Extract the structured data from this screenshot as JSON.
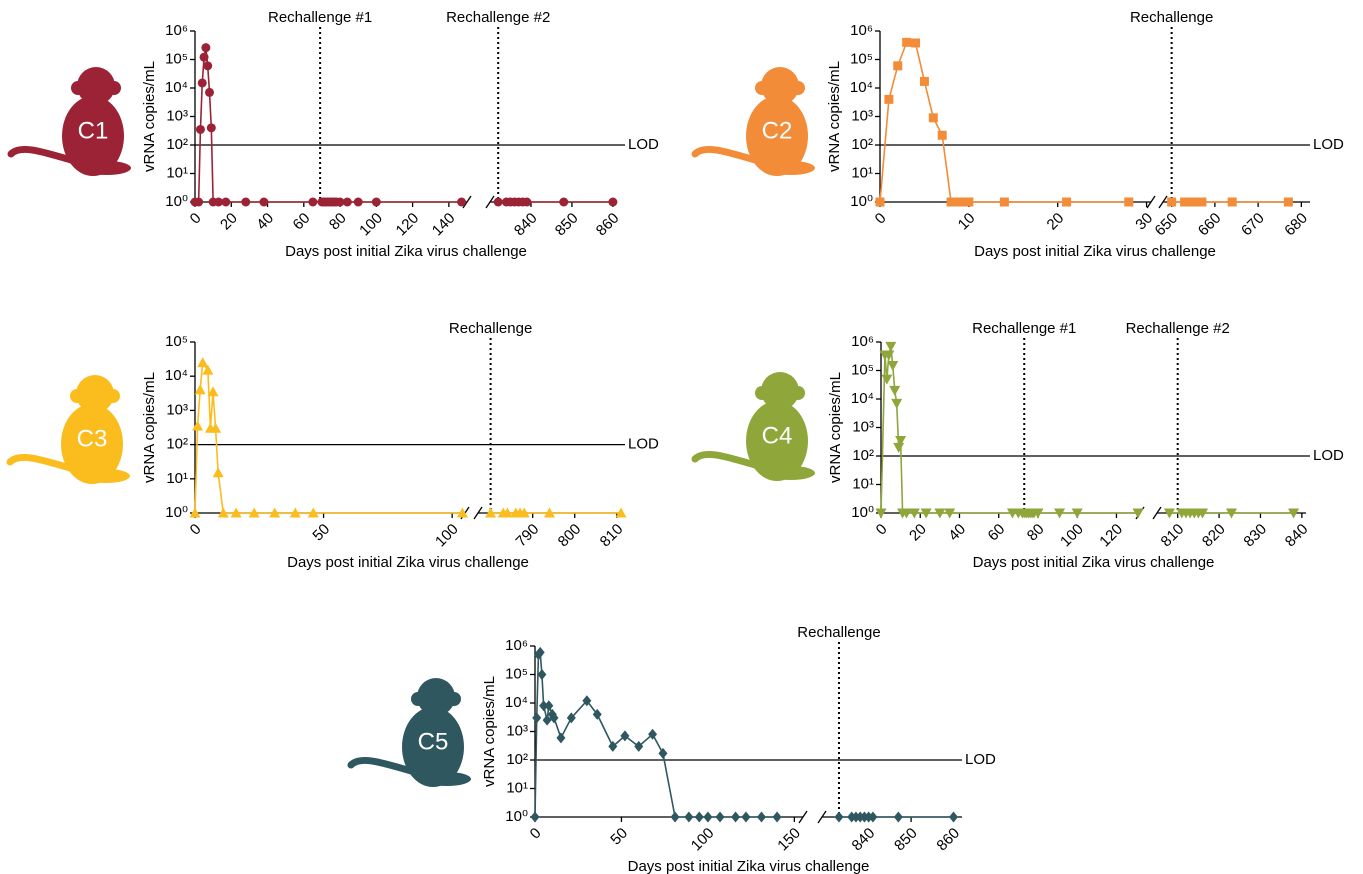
{
  "chart_data": [
    {
      "type": "line",
      "label": "C1",
      "color": "#9b2335",
      "marker": "circle",
      "log_y": true,
      "ylabel": "vRNA copies/mL",
      "xlabel": "Days post initial Zika virus challenge",
      "ylim": [
        1,
        1000000
      ],
      "yticks": [
        {
          "value": 1,
          "label": "10⁰"
        },
        {
          "value": 10,
          "label": "10¹"
        },
        {
          "value": 100,
          "label": "10²"
        },
        {
          "value": 1000,
          "label": "10³"
        },
        {
          "value": 10000,
          "label": "10⁴"
        },
        {
          "value": 100000,
          "label": "10⁵"
        },
        {
          "value": 1000000,
          "label": "10⁶"
        }
      ],
      "x_segments": [
        {
          "xlim": [
            0,
            150
          ],
          "xticks": [
            0,
            20,
            40,
            60,
            80,
            100,
            120,
            140
          ]
        },
        {
          "xlim": [
            830,
            861
          ],
          "xticks": [
            840,
            850,
            860
          ]
        }
      ],
      "lod": {
        "text": "LOD",
        "y": 100
      },
      "annotations": [
        {
          "text": "Rechallenge #1",
          "x": 69
        },
        {
          "text": "Rechallenge #2",
          "x": 832
        }
      ],
      "x": [
        0,
        2,
        3,
        4,
        5,
        6,
        7,
        8,
        9,
        10,
        13,
        17,
        28,
        38,
        65,
        70,
        71,
        72,
        73,
        74,
        75,
        76,
        77,
        78,
        80,
        84,
        90,
        100,
        147,
        832,
        834,
        835,
        836,
        837,
        838,
        839,
        848,
        860
      ],
      "values": [
        1,
        1,
        350,
        15000,
        120000,
        260000,
        60000,
        7000,
        400,
        1,
        1,
        1,
        1,
        1,
        1,
        1,
        1,
        1,
        1,
        1,
        1,
        1,
        1,
        1,
        1,
        1,
        1,
        1,
        1,
        1,
        1,
        1,
        1,
        1,
        1,
        1,
        1,
        1
      ]
    },
    {
      "type": "line",
      "label": "C2",
      "color": "#f28c38",
      "marker": "square",
      "log_y": true,
      "ylabel": "vRNA copies/mL",
      "xlabel": "Days post initial Zika virus challenge",
      "ylim": [
        1,
        1000000
      ],
      "yticks": [
        {
          "value": 1,
          "label": "10⁰"
        },
        {
          "value": 10,
          "label": "10¹"
        },
        {
          "value": 100,
          "label": "10²"
        },
        {
          "value": 1000,
          "label": "10³"
        },
        {
          "value": 10000,
          "label": "10⁴"
        },
        {
          "value": 100000,
          "label": "10⁵"
        },
        {
          "value": 1000000,
          "label": "10⁶"
        }
      ],
      "x_segments": [
        {
          "xlim": [
            0,
            30.5
          ],
          "xticks": [
            0,
            10,
            20,
            30
          ]
        },
        {
          "xlim": [
            648,
            682
          ],
          "xticks": [
            650,
            660,
            670,
            680
          ]
        }
      ],
      "lod": {
        "text": "LOD",
        "y": 100
      },
      "annotations": [
        {
          "text": "Rechallenge",
          "x": 650
        }
      ],
      "x": [
        0,
        1,
        2,
        3,
        4,
        5,
        6,
        7,
        8,
        9,
        10,
        14,
        21,
        28,
        650,
        653,
        654,
        655,
        656,
        657,
        664,
        677
      ],
      "values": [
        1,
        4000,
        60000,
        400000,
        380000,
        17000,
        900,
        220,
        1,
        1,
        1,
        1,
        1,
        1,
        1,
        1,
        1,
        1,
        1,
        1,
        1,
        1
      ]
    },
    {
      "type": "line",
      "label": "C3",
      "color": "#fbbd1d",
      "marker": "triangle-up",
      "log_y": true,
      "ylabel": "vRNA copies/mL",
      "xlabel": "Days post initial Zika virus challenge",
      "ylim": [
        1,
        100000
      ],
      "yticks": [
        {
          "value": 1,
          "label": "10⁰"
        },
        {
          "value": 10,
          "label": "10¹"
        },
        {
          "value": 100,
          "label": "10²"
        },
        {
          "value": 1000,
          "label": "10³"
        },
        {
          "value": 10000,
          "label": "10⁴"
        },
        {
          "value": 100000,
          "label": "10⁵"
        }
      ],
      "x_segments": [
        {
          "xlim": [
            0,
            105
          ],
          "xticks": [
            0,
            50,
            100
          ]
        },
        {
          "xlim": [
            777,
            811
          ],
          "xticks": [
            790,
            800,
            810
          ]
        }
      ],
      "lod": {
        "text": "LOD",
        "y": 100
      },
      "annotations": [
        {
          "text": "Rechallenge",
          "x": 780
        }
      ],
      "x": [
        0,
        1,
        2,
        3,
        5,
        6,
        7,
        8,
        9,
        11,
        16,
        23,
        31,
        39,
        46,
        104,
        780,
        783,
        784,
        786,
        787,
        788,
        794,
        811
      ],
      "values": [
        1,
        350,
        4000,
        25000,
        15000,
        300,
        3500,
        300,
        15,
        1,
        1,
        1,
        1,
        1,
        1,
        1,
        1,
        1,
        1,
        1,
        1,
        1,
        1,
        1
      ]
    },
    {
      "type": "line",
      "label": "C4",
      "color": "#8ea63a",
      "marker": "triangle-down",
      "log_y": true,
      "ylabel": "vRNA copies/mL",
      "xlabel": "Days post initial Zika virus challenge",
      "ylim": [
        1,
        1000000
      ],
      "yticks": [
        {
          "value": 1,
          "label": "10⁰"
        },
        {
          "value": 10,
          "label": "10¹"
        },
        {
          "value": 100,
          "label": "10²"
        },
        {
          "value": 1000,
          "label": "10³"
        },
        {
          "value": 10000,
          "label": "10⁴"
        },
        {
          "value": 100000,
          "label": "10⁵"
        },
        {
          "value": 1000000,
          "label": "10⁶"
        }
      ],
      "x_segments": [
        {
          "xlim": [
            0,
            132
          ],
          "xticks": [
            0,
            20,
            40,
            60,
            80,
            100,
            120
          ]
        },
        {
          "xlim": [
            805,
            841
          ],
          "xticks": [
            810,
            820,
            830,
            840
          ]
        }
      ],
      "lod": {
        "text": "LOD",
        "y": 100
      },
      "annotations": [
        {
          "text": "Rechallenge #1",
          "x": 73
        },
        {
          "text": "Rechallenge #2",
          "x": 810
        }
      ],
      "x": [
        0,
        2,
        3,
        4,
        5,
        6,
        7,
        8,
        9,
        10,
        11,
        13,
        17,
        23,
        30,
        35,
        67,
        70,
        72,
        73,
        74,
        75,
        76,
        77,
        78,
        80,
        91,
        100,
        131,
        808,
        811,
        812,
        813,
        814,
        815,
        816,
        823,
        838
      ],
      "values": [
        1,
        350000,
        50000,
        350000,
        700000,
        150000,
        20000,
        7000,
        200,
        350,
        1,
        1,
        1,
        1,
        1,
        1,
        1,
        1,
        1,
        1,
        1,
        1,
        1,
        1,
        1,
        1,
        1,
        1,
        1,
        1,
        1,
        1,
        1,
        1,
        1,
        1,
        1,
        1
      ]
    },
    {
      "type": "line",
      "label": "C5",
      "color": "#2f5760",
      "marker": "diamond",
      "log_y": true,
      "ylabel": "vRNA copies/mL",
      "xlabel": "Days post initial Zika virus challenge",
      "ylim": [
        1,
        1000000
      ],
      "yticks": [
        {
          "value": 1,
          "label": "10⁰"
        },
        {
          "value": 10,
          "label": "10¹"
        },
        {
          "value": 100,
          "label": "10²"
        },
        {
          "value": 1000,
          "label": "10³"
        },
        {
          "value": 10000,
          "label": "10⁴"
        },
        {
          "value": 100000,
          "label": "10⁵"
        },
        {
          "value": 1000000,
          "label": "10⁶"
        }
      ],
      "x_segments": [
        {
          "xlim": [
            0,
            155
          ],
          "xticks": [
            0,
            50,
            100,
            150
          ]
        },
        {
          "xlim": [
            829,
            862
          ],
          "xticks": [
            840,
            850,
            860
          ]
        }
      ],
      "lod": {
        "text": "LOD",
        "y": 100
      },
      "annotations": [
        {
          "text": "Rechallenge",
          "x": 833
        }
      ],
      "x": [
        0,
        1,
        2,
        3,
        4,
        5,
        7,
        8,
        10,
        11,
        15,
        21,
        30,
        36,
        45,
        52,
        60,
        68,
        74,
        81,
        89,
        95,
        100,
        107,
        116,
        122,
        131,
        140,
        833,
        836,
        837,
        838,
        839,
        840,
        841,
        847,
        860
      ],
      "values": [
        1,
        3000,
        500000,
        600000,
        100000,
        8000,
        2500,
        8000,
        4000,
        3000,
        600,
        3000,
        12000,
        4000,
        300,
        700,
        300,
        800,
        170,
        1,
        1,
        1,
        1,
        1,
        1,
        1,
        1,
        1,
        1,
        1,
        1,
        1,
        1,
        1,
        1,
        1,
        1
      ]
    }
  ]
}
